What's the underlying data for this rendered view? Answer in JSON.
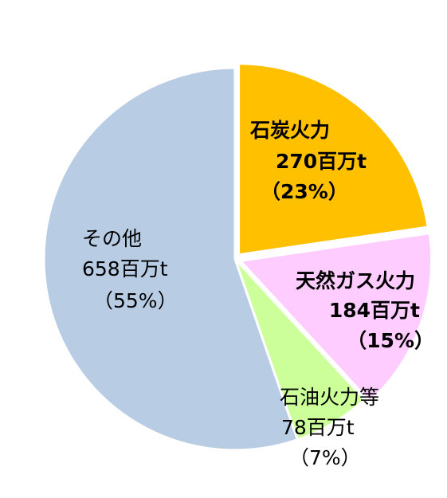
{
  "chart_data": {
    "type": "pie",
    "title": "",
    "slices": [
      {
        "name": "石炭火力",
        "value_label": "270百万t",
        "percent_label": "（23%）",
        "value": 270,
        "percent": 23,
        "color": "#FFC000",
        "exploded": true,
        "label_bold": true
      },
      {
        "name": "天然ガス火力",
        "value_label": "184百万t",
        "percent_label": "（15%）",
        "value": 184,
        "percent": 15,
        "color": "#FFCCFF",
        "exploded": true,
        "label_bold": true
      },
      {
        "name": "石油火力等",
        "value_label": "78百万t",
        "percent_label": "（7%）",
        "value": 78,
        "percent": 7,
        "color": "#CCFF99",
        "exploded": false,
        "label_bold": false
      },
      {
        "name": "その他",
        "value_label": "658百万t",
        "percent_label": "（55%）",
        "value": 658,
        "percent": 55,
        "color": "#B8CCE4",
        "exploded": false,
        "label_bold": false
      }
    ]
  }
}
